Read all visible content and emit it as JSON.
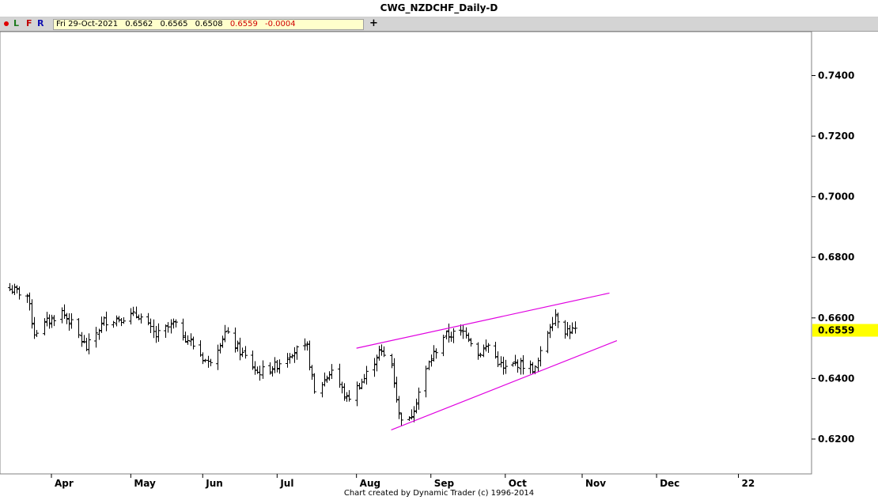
{
  "window": {
    "title": "CWG_NZDCHF_Daily-D",
    "toolbar": {
      "l_label": "L",
      "f_label": "F",
      "r_label": "R",
      "plus_label": "+"
    },
    "ohlc": {
      "date": "Fri 29-Oct-2021",
      "open": "0.6562",
      "high": "0.6565",
      "low": "0.6508",
      "close": "0.6559",
      "change": "-0.0004"
    },
    "footer": "Chart created by Dynamic Trader  (c)  1996-2014"
  },
  "colors": {
    "bars": "#000000",
    "trendlines": "#e000e0",
    "last_price_tag": "#ffff00",
    "toolbar_bg": "#d4d4d4"
  },
  "chart_data": {
    "type": "ohlc",
    "y_ticks": [
      "0.7400",
      "0.7200",
      "0.7000",
      "0.6800",
      "0.6600",
      "0.6400",
      "0.6200"
    ],
    "ylim": [
      0.6085,
      0.7545
    ],
    "month_labels": [
      {
        "label": "Apr",
        "date": "2021-04-01"
      },
      {
        "label": "May",
        "date": "2021-05-03"
      },
      {
        "label": "Jun",
        "date": "2021-06-01"
      },
      {
        "label": "Jul",
        "date": "2021-07-01"
      },
      {
        "label": "Aug",
        "date": "2021-08-02"
      },
      {
        "label": "Sep",
        "date": "2021-09-01"
      },
      {
        "label": "Oct",
        "date": "2021-10-01"
      },
      {
        "label": "Nov",
        "date": "2021-11-01"
      },
      {
        "label": "Dec",
        "date": "2021-12-01"
      },
      {
        "label": "22",
        "date": "2022-01-03"
      }
    ],
    "last_price": "0.6559",
    "grid": false,
    "trendlines": [
      {
        "from": [
          "2021-08-02",
          0.65
        ],
        "to": [
          "2021-11-12",
          0.6682
        ]
      },
      {
        "from": [
          "2021-08-16",
          0.623
        ],
        "to": [
          "2021-11-15",
          0.6525
        ]
      }
    ],
    "price_path": [
      [
        "2021-03-15",
        0.6695
      ],
      [
        "2021-03-22",
        0.6675
      ],
      [
        "2021-03-25",
        0.655
      ],
      [
        "2021-03-29",
        0.658
      ],
      [
        "2021-04-05",
        0.662
      ],
      [
        "2021-04-09",
        0.658
      ],
      [
        "2021-04-15",
        0.65
      ],
      [
        "2021-04-22",
        0.659
      ],
      [
        "2021-04-29",
        0.66
      ],
      [
        "2021-05-06",
        0.661
      ],
      [
        "2021-05-13",
        0.654
      ],
      [
        "2021-05-20",
        0.658
      ],
      [
        "2021-05-27",
        0.652
      ],
      [
        "2021-06-03",
        0.645
      ],
      [
        "2021-06-10",
        0.655
      ],
      [
        "2021-06-16",
        0.649
      ],
      [
        "2021-06-23",
        0.642
      ],
      [
        "2021-06-30",
        0.644
      ],
      [
        "2021-07-07",
        0.649
      ],
      [
        "2021-07-13",
        0.65
      ],
      [
        "2021-07-16",
        0.635
      ],
      [
        "2021-07-23",
        0.643
      ],
      [
        "2021-07-29",
        0.633
      ],
      [
        "2021-08-05",
        0.64
      ],
      [
        "2021-08-11",
        0.649
      ],
      [
        "2021-08-16",
        0.645
      ],
      [
        "2021-08-19",
        0.628
      ],
      [
        "2021-08-23",
        0.626
      ],
      [
        "2021-08-31",
        0.645
      ],
      [
        "2021-09-06",
        0.654
      ],
      [
        "2021-09-15",
        0.6555
      ],
      [
        "2021-09-20",
        0.648
      ],
      [
        "2021-09-24",
        0.651
      ],
      [
        "2021-09-30",
        0.643
      ],
      [
        "2021-10-06",
        0.645
      ],
      [
        "2021-10-13",
        0.643
      ],
      [
        "2021-10-19",
        0.658
      ],
      [
        "2021-10-21",
        0.661
      ],
      [
        "2021-10-25",
        0.656
      ],
      [
        "2021-10-29",
        0.6559
      ]
    ]
  }
}
